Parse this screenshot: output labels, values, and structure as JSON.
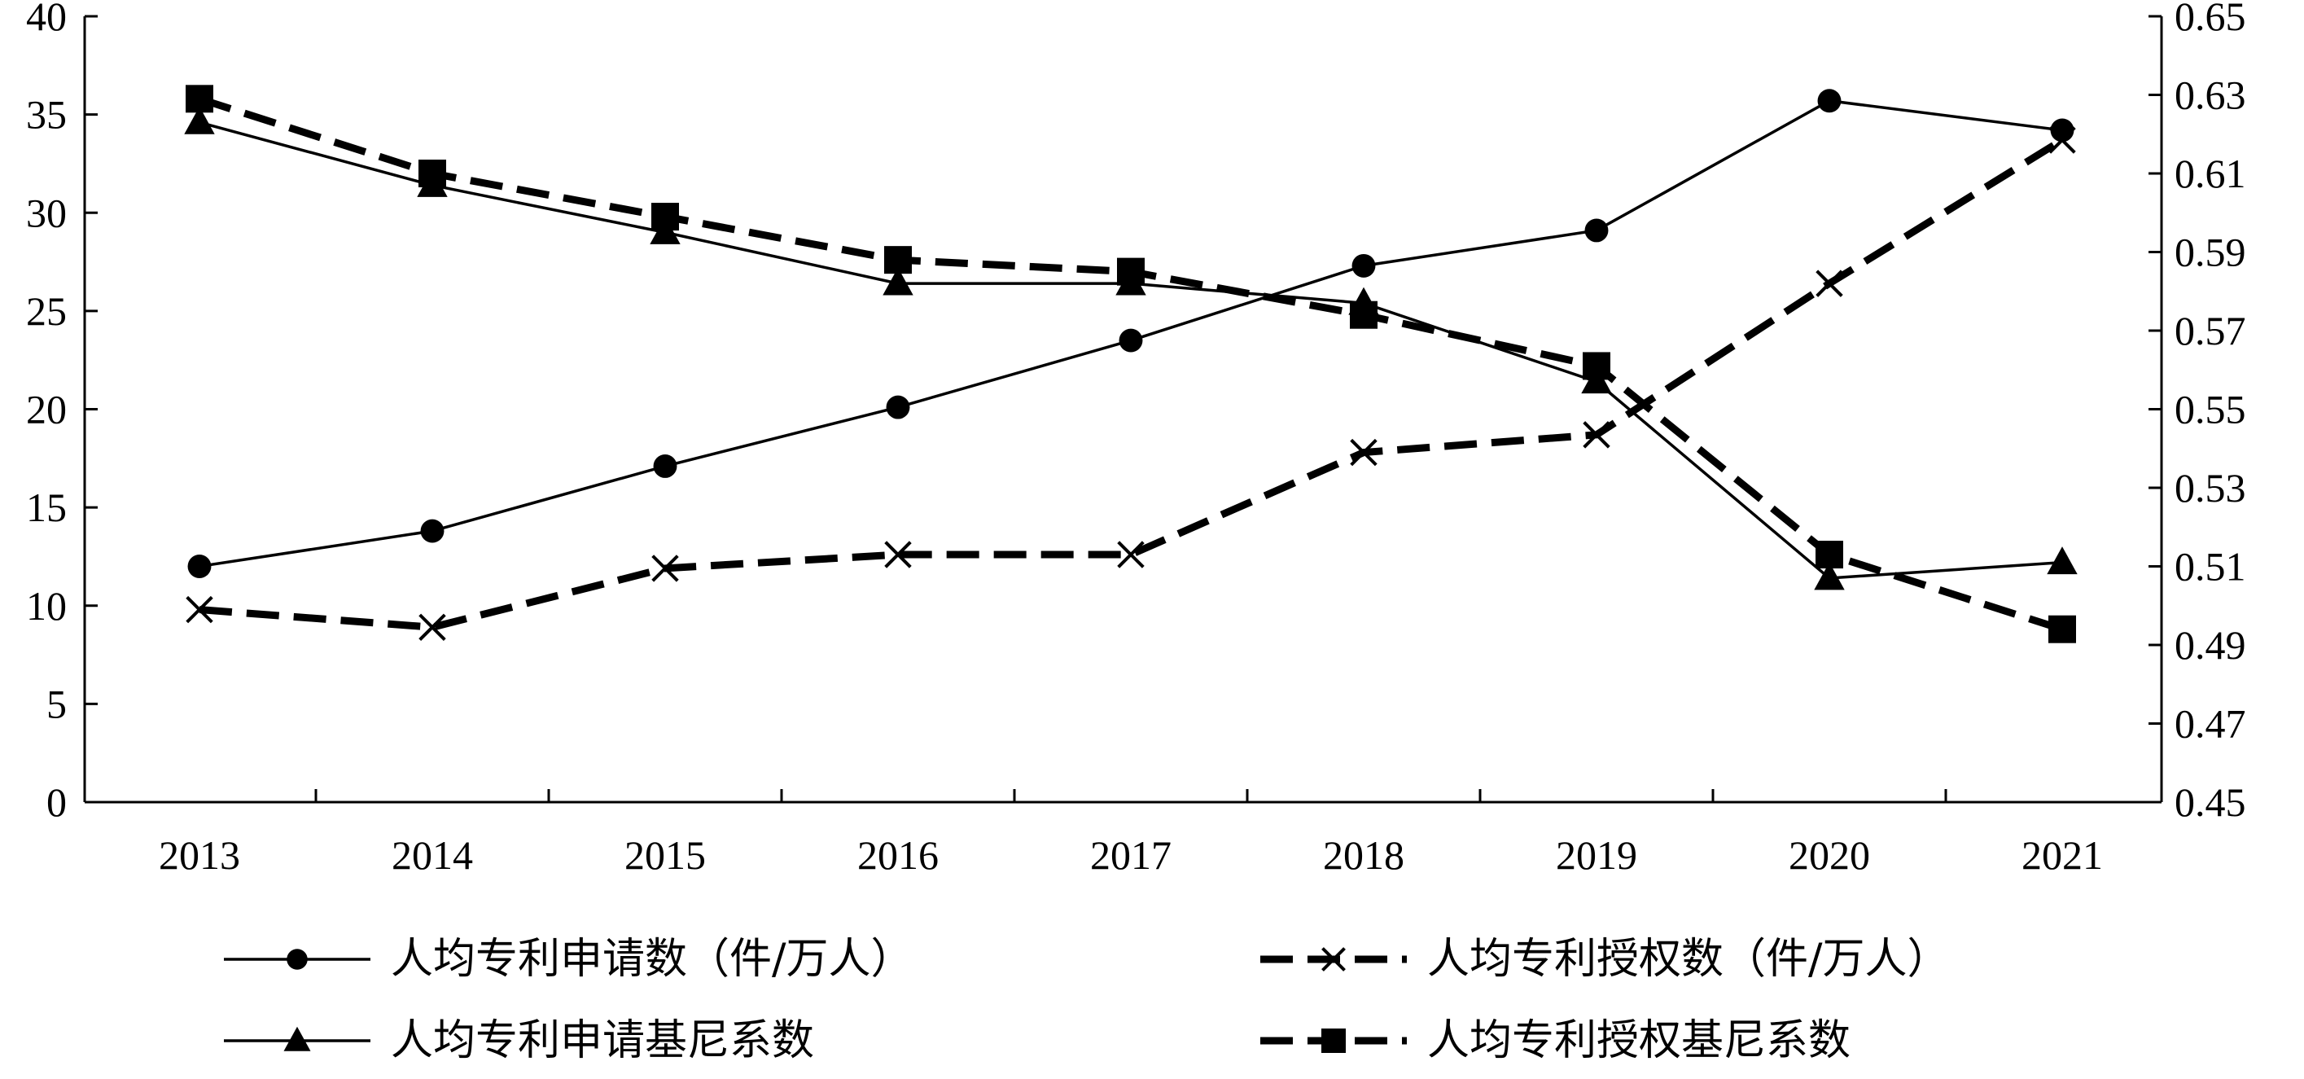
{
  "chart_data": {
    "type": "line",
    "title": "",
    "categories": [
      "2013",
      "2014",
      "2015",
      "2016",
      "2017",
      "2018",
      "2019",
      "2020",
      "2021"
    ],
    "y_left": {
      "ylim": [
        0,
        40
      ],
      "ticks": [
        0,
        5,
        10,
        15,
        20,
        25,
        30,
        35,
        40
      ],
      "tick_labels": [
        "0",
        "5",
        "10",
        "15",
        "20",
        "25",
        "30",
        "35",
        "40"
      ]
    },
    "y_right": {
      "ylim": [
        0.45,
        0.65
      ],
      "ticks": [
        0.45,
        0.47,
        0.49,
        0.51,
        0.53,
        0.55,
        0.57,
        0.59,
        0.61,
        0.63,
        0.65
      ],
      "tick_labels": [
        "0.45",
        "0.47",
        "0.49",
        "0.51",
        "0.53",
        "0.55",
        "0.57",
        "0.59",
        "0.61",
        "0.63",
        "0.65"
      ]
    },
    "grid": false,
    "legend_position": "bottom",
    "series": [
      {
        "name": "人均专利申请数（件/万人）",
        "axis": "left",
        "marker": "circle",
        "line_style": "solid",
        "color": "#000000",
        "values": [
          12.0,
          13.8,
          17.1,
          20.1,
          23.5,
          27.3,
          29.1,
          35.7,
          34.2
        ]
      },
      {
        "name": "人均专利授权数（件/万人）",
        "axis": "left",
        "marker": "x",
        "line_style": "dashed",
        "color": "#000000",
        "values": [
          9.8,
          8.9,
          11.9,
          12.6,
          12.6,
          17.8,
          18.7,
          26.4,
          33.7
        ]
      },
      {
        "name": "人均专利申请基尼系数",
        "axis": "right",
        "marker": "triangle",
        "line_style": "solid",
        "color": "#000000",
        "values": [
          0.623,
          0.607,
          0.595,
          0.582,
          0.582,
          0.577,
          0.557,
          0.507,
          0.511
        ]
      },
      {
        "name": "人均专利授权基尼系数",
        "axis": "right",
        "marker": "square",
        "line_style": "dashed",
        "color": "#000000",
        "values": [
          0.629,
          0.61,
          0.599,
          0.588,
          0.585,
          0.574,
          0.561,
          0.513,
          0.494
        ]
      }
    ]
  }
}
